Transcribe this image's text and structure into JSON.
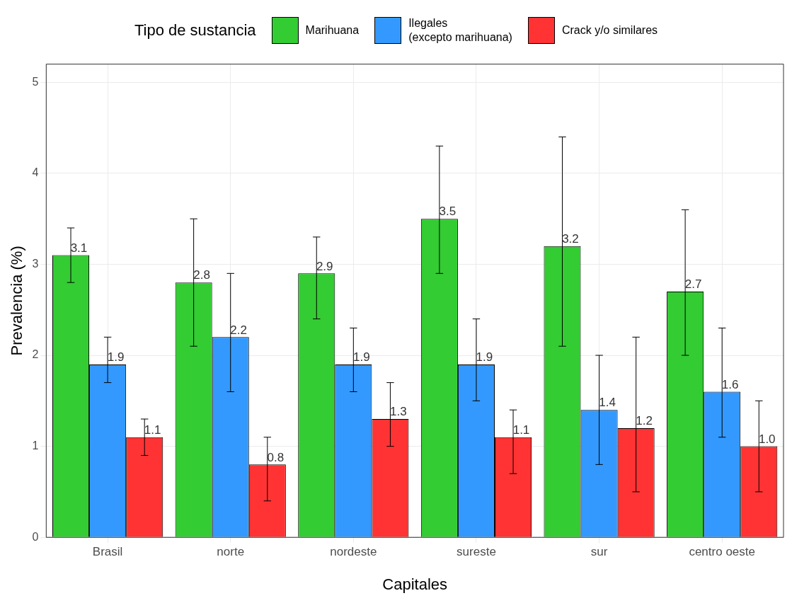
{
  "chart_data": {
    "type": "bar",
    "xlabel": "Capitales",
    "ylabel": "Prevalencia (%)",
    "legend_title": "Tipo de sustancia",
    "categories": [
      "Brasil",
      "norte",
      "nordeste",
      "sureste",
      "sur",
      "centro oeste"
    ],
    "series": [
      {
        "name": "Marihuana",
        "color": "#33cc33",
        "values": [
          3.1,
          2.8,
          2.9,
          3.5,
          3.2,
          2.7
        ],
        "value_labels": [
          "3.1",
          "2.8",
          "2.9",
          "3.5",
          "3.2",
          "2.7"
        ],
        "errors": [
          [
            2.8,
            3.4
          ],
          [
            2.1,
            3.5
          ],
          [
            2.4,
            3.3
          ],
          [
            2.9,
            4.3
          ],
          [
            2.1,
            4.4
          ],
          [
            2.0,
            3.6
          ]
        ]
      },
      {
        "name": "Ilegales\n(excepto marihuana)",
        "color": "#3399ff",
        "values": [
          1.9,
          2.2,
          1.9,
          1.9,
          1.4,
          1.6
        ],
        "value_labels": [
          "1.9",
          "2.2",
          "1.9",
          "1.9",
          "1.4",
          "1.6"
        ],
        "errors": [
          [
            1.7,
            2.2
          ],
          [
            1.6,
            2.9
          ],
          [
            1.6,
            2.3
          ],
          [
            1.5,
            2.4
          ],
          [
            0.8,
            2.0
          ],
          [
            1.1,
            2.3
          ]
        ]
      },
      {
        "name": "Crack y/o similares",
        "color": "#ff3333",
        "values": [
          1.1,
          0.8,
          1.3,
          1.1,
          1.2,
          1.0
        ],
        "value_labels": [
          "1.1",
          "0.8",
          "1.3",
          "1.1",
          "1.2",
          "1.0"
        ],
        "errors": [
          [
            0.9,
            1.3
          ],
          [
            0.4,
            1.1
          ],
          [
            1.0,
            1.7
          ],
          [
            0.7,
            1.4
          ],
          [
            0.5,
            2.2
          ],
          [
            0.5,
            1.5
          ]
        ]
      }
    ],
    "ylim": [
      0,
      5.2
    ],
    "yticks": [
      0,
      1,
      2,
      3,
      4,
      5
    ],
    "grid": true,
    "legend": "top"
  }
}
